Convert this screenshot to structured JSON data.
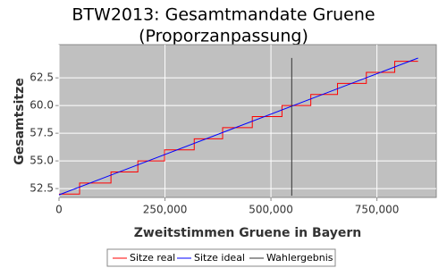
{
  "chart_data": {
    "type": "line",
    "title": [
      "BTW2013: Gesamtmandate Gruene",
      "(Proporzanpassung)"
    ],
    "xlabel": "Zweitstimmen Gruene in Bayern",
    "ylabel": "Gesamtsitze",
    "xlim": [
      0,
      890000
    ],
    "ylim": [
      51.7,
      65.5
    ],
    "xticks": [
      0,
      {
        "value": 250000,
        "label": "250,000"
      },
      {
        "value": 500000,
        "label": "500,000"
      },
      {
        "value": 750000,
        "label": "750,000"
      }
    ],
    "yticks": [
      52.5,
      {
        "value": 55,
        "label": "55.0"
      },
      57.5,
      {
        "value": 60,
        "label": "60.0"
      },
      62.5
    ],
    "grid": true,
    "background": "#c0c0c0",
    "series": [
      {
        "name": "Sitze real",
        "color": "#ff0000",
        "x": [
          0,
          48600,
          48600,
          122600,
          122600,
          186000,
          186000,
          249000,
          249000,
          319000,
          319000,
          386000,
          386000,
          456000,
          456000,
          526000,
          526000,
          594000,
          594000,
          657000,
          657000,
          725000,
          725000,
          792000,
          792000,
          847000
        ],
        "values": [
          52,
          52,
          53,
          53,
          54,
          54,
          55,
          55,
          56,
          56,
          57,
          57,
          58,
          58,
          59,
          59,
          60,
          60,
          61,
          61,
          62,
          62,
          63,
          63,
          64,
          64
        ]
      },
      {
        "name": "Sitze ideal",
        "color": "#0000ff",
        "x": [
          0,
          847000
        ],
        "values": [
          51.93,
          64.29
        ]
      },
      {
        "name": "Wahlergebnis",
        "color": "#333333",
        "x": [
          549000,
          549000
        ],
        "values": [
          51.85,
          64.3
        ]
      }
    ]
  }
}
